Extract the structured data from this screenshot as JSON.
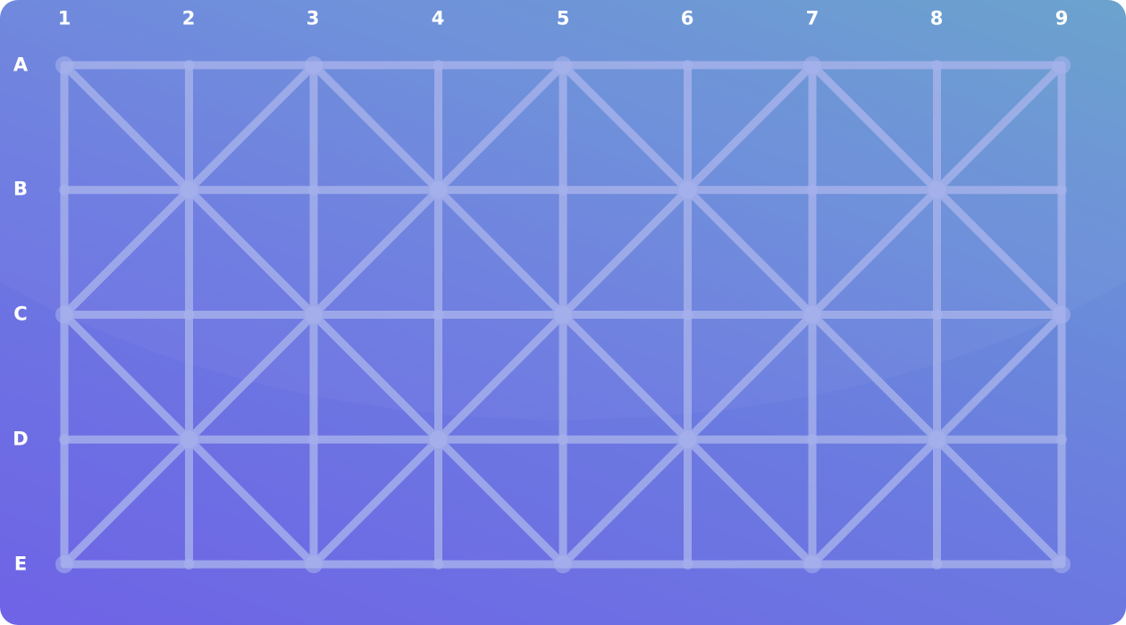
{
  "board": {
    "columns": [
      "1",
      "2",
      "3",
      "4",
      "5",
      "6",
      "7",
      "8",
      "9"
    ],
    "rows": [
      "A",
      "B",
      "C",
      "D",
      "E"
    ],
    "line_color": "#a9b4ec",
    "background_colors": [
      "#6f63e6",
      "#6a8fd8",
      "#66a0cc"
    ]
  }
}
